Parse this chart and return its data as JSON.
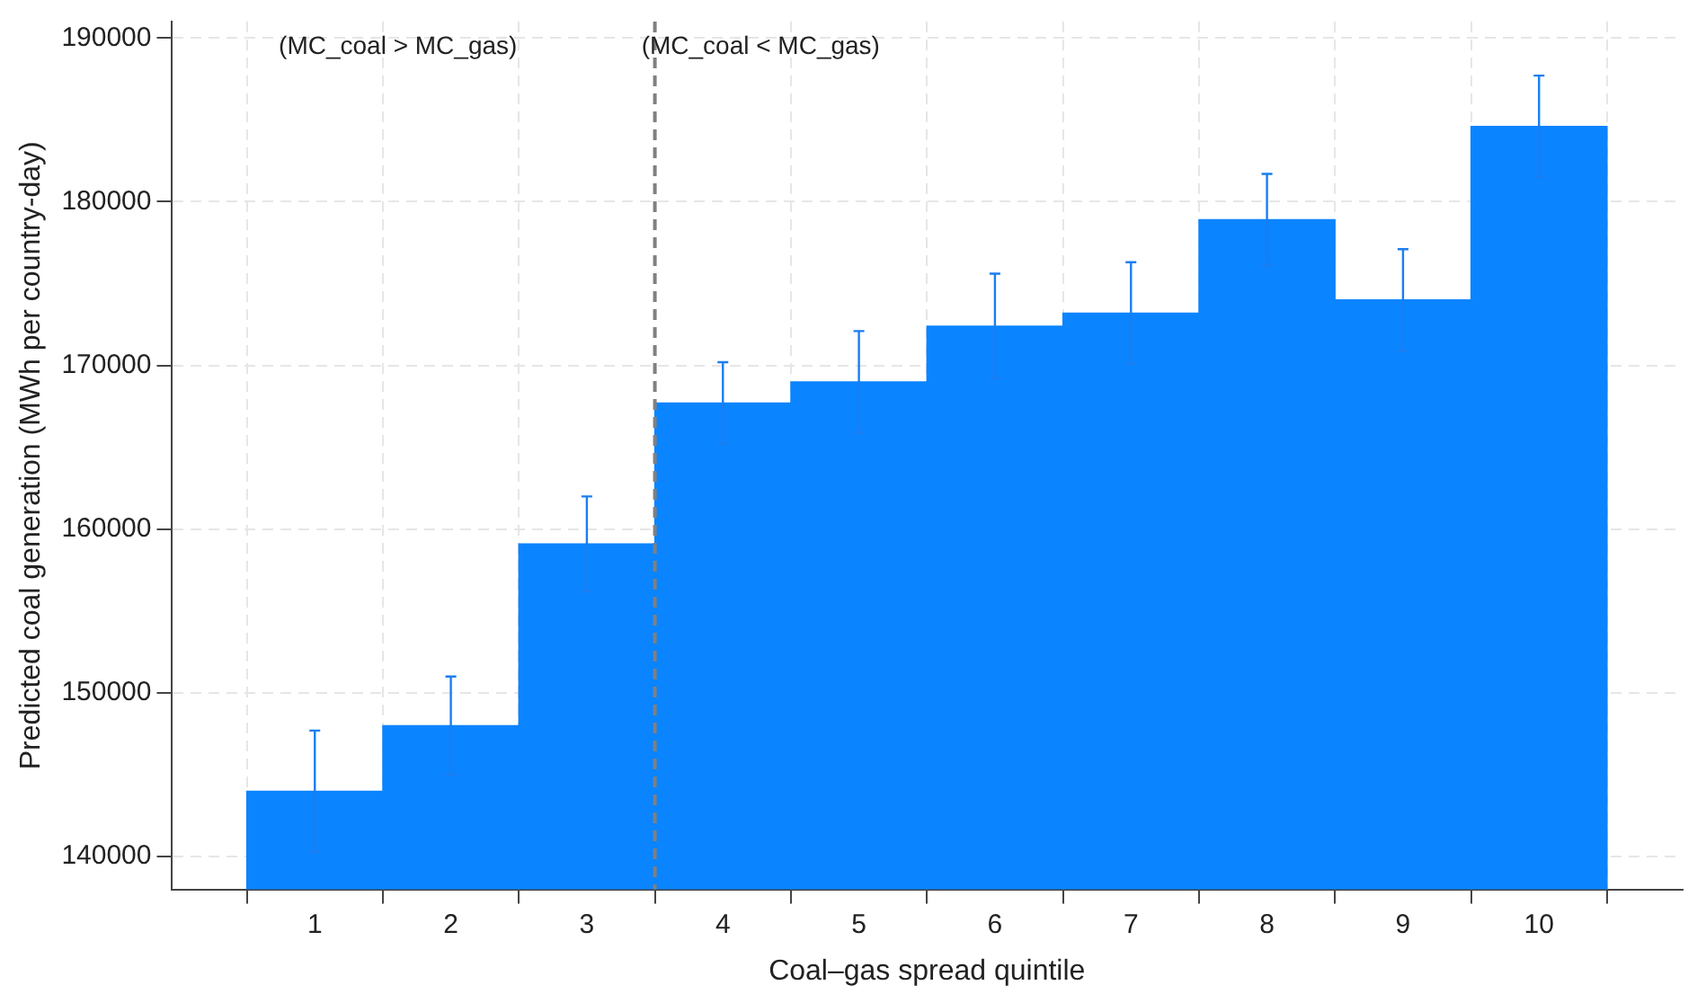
{
  "chart_data": {
    "type": "bar",
    "xlabel": "Coal–gas spread quintile",
    "ylabel": "Predicted coal generation (MWh per country-day)",
    "x": [
      1,
      2,
      3,
      4,
      5,
      6,
      7,
      8,
      9,
      10
    ],
    "values": [
      144000,
      148000,
      159100,
      167700,
      169000,
      172400,
      173200,
      178900,
      174000,
      184600
    ],
    "errors": [
      3700,
      3000,
      2900,
      2500,
      3100,
      3200,
      3100,
      2800,
      3100,
      3100
    ],
    "color": "#0a84ff",
    "xlim": [
      0.5,
      10.5
    ],
    "xticks": [
      1,
      2,
      3,
      4,
      5,
      6,
      7,
      8,
      9,
      10
    ],
    "ylim": [
      138000,
      191000
    ],
    "yticks": [
      140000,
      150000,
      160000,
      170000,
      180000,
      190000
    ],
    "ref_lines": [
      {
        "axis": "x",
        "value": 3.5,
        "color": "#808080",
        "line_style": "dashed"
      }
    ],
    "annotations": [
      "(MC_coal > MC_gas)",
      "(MC_coal < MC_gas)"
    ],
    "grid": true,
    "legend": false
  }
}
